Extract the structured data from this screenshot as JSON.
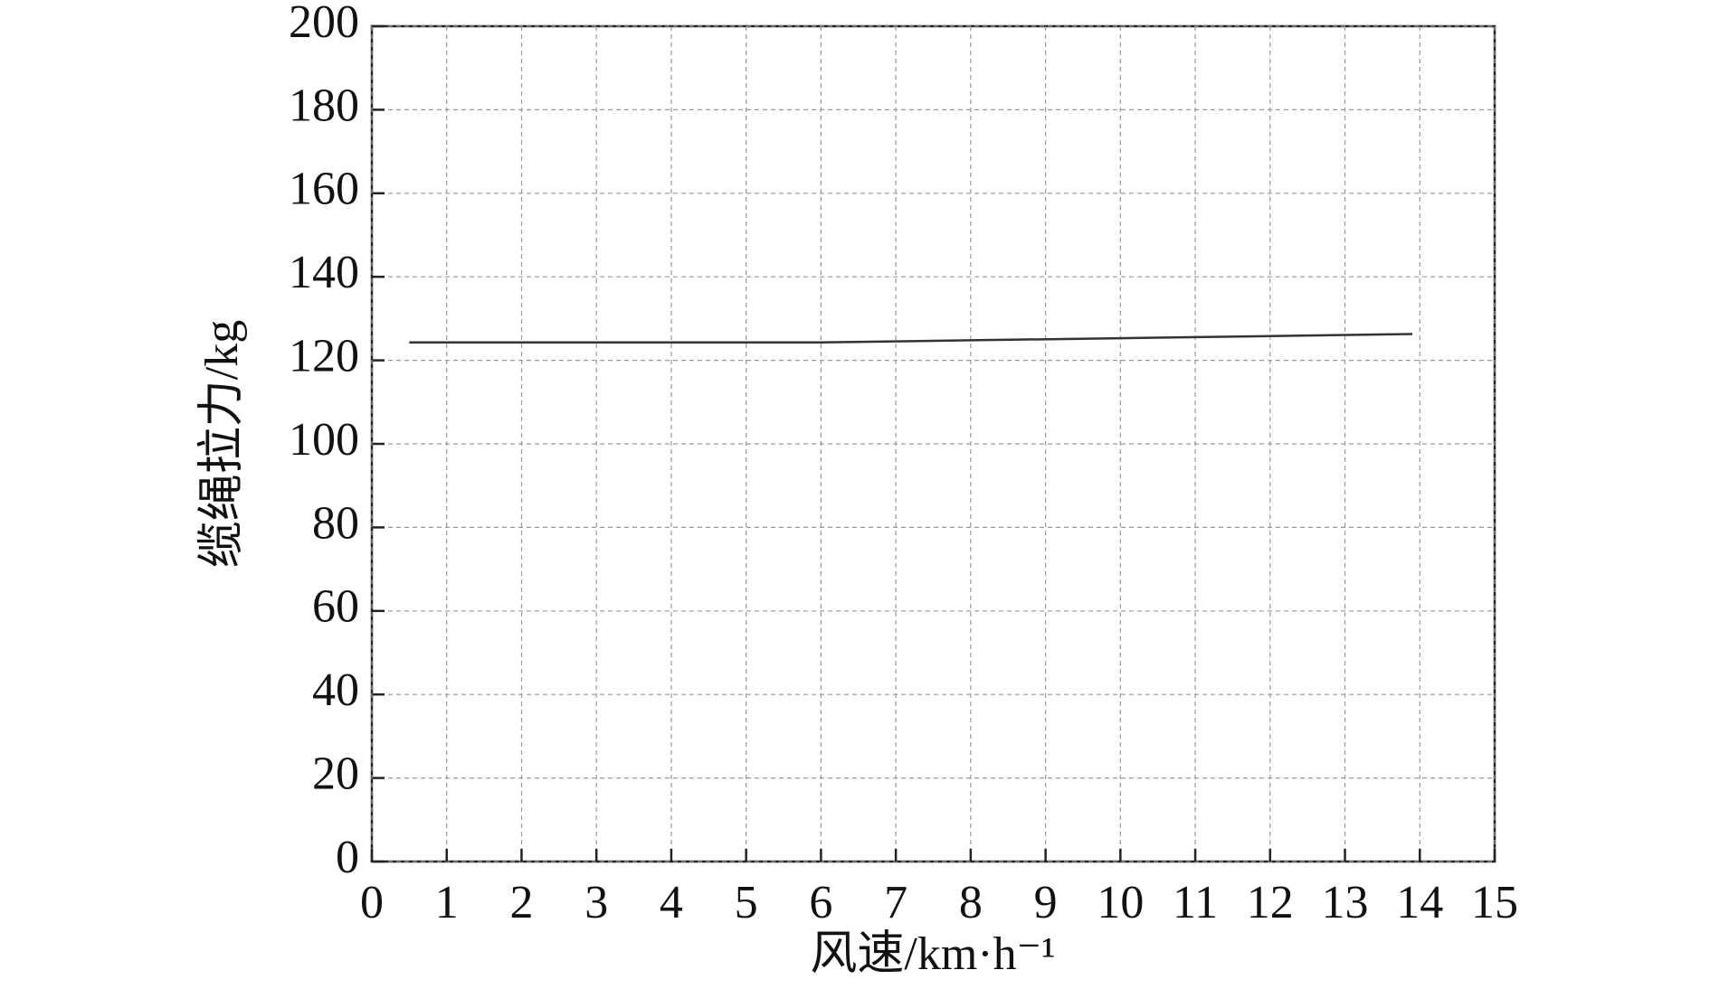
{
  "chart_data": {
    "type": "line",
    "x_label": "风速/km·h⁻¹",
    "y_label": "缆绳拉力/kg",
    "x": [
      0.5,
      2,
      4,
      6,
      8,
      10,
      12,
      13.9
    ],
    "series": [
      {
        "color": "#333333",
        "values": [
          124.3,
          124.3,
          124.3,
          124.3,
          124.8,
          125.3,
          125.8,
          126.3
        ]
      }
    ],
    "xlim": [
      0,
      15
    ],
    "xticks": [
      0,
      1,
      2,
      3,
      4,
      5,
      6,
      7,
      8,
      9,
      10,
      11,
      12,
      13,
      14,
      15
    ],
    "ylim": [
      0,
      200
    ],
    "yticks": [
      0,
      20,
      40,
      60,
      80,
      100,
      120,
      140,
      160,
      180,
      200
    ],
    "grid": true
  }
}
